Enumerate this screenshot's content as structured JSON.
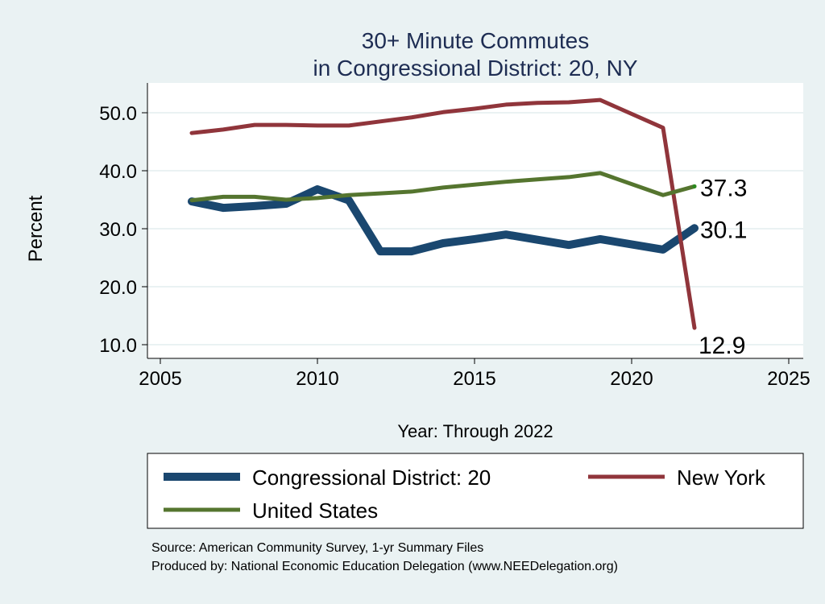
{
  "chart_data": {
    "type": "line",
    "title": [
      "30+ Minute Commutes",
      "in Congressional District:  20, NY"
    ],
    "xlabel": "Year: Through 2022",
    "ylabel": "Percent",
    "xlim": [
      2005,
      2025
    ],
    "ylim": [
      10,
      50
    ],
    "xticks": [
      2005,
      2010,
      2015,
      2020,
      2025
    ],
    "xtick_labels": [
      "2005",
      "2010",
      "2015",
      "2020",
      "2025"
    ],
    "yticks": [
      10,
      20,
      30,
      40,
      50
    ],
    "ytick_labels": [
      "10.0",
      "20.0",
      "30.0",
      "40.0",
      "50.0"
    ],
    "grid": true,
    "legend_position": "bottom",
    "x": [
      2006,
      2007,
      2008,
      2009,
      2010,
      2011,
      2012,
      2013,
      2014,
      2015,
      2016,
      2017,
      2018,
      2019,
      2021,
      2022
    ],
    "series": [
      {
        "name": "Congressional District:  20",
        "color": "#1a476f",
        "values": [
          34.7,
          33.6,
          33.9,
          34.3,
          36.8,
          34.9,
          26.1,
          26.1,
          27.5,
          28.2,
          29.0,
          28.1,
          27.2,
          28.2,
          26.4,
          30.1
        ],
        "end_label": "30.1"
      },
      {
        "name": "New York",
        "color": "#90353b",
        "values": [
          46.5,
          47.1,
          47.9,
          47.9,
          47.8,
          47.8,
          48.5,
          49.2,
          50.1,
          50.7,
          51.4,
          51.7,
          51.8,
          52.2,
          47.4,
          12.9
        ],
        "end_label": "12.9"
      },
      {
        "name": "United States",
        "color": "#55752f",
        "values": [
          34.9,
          35.5,
          35.5,
          35.0,
          35.3,
          35.8,
          36.1,
          36.4,
          37.1,
          37.6,
          38.1,
          38.5,
          38.9,
          39.6,
          35.8,
          37.3
        ],
        "end_label": "37.3"
      }
    ],
    "notes": [
      "Source: American Community Survey, 1-yr Summary Files",
      "Produced by: National Economic Education Delegation (www.NEEDelegation.org)"
    ]
  }
}
